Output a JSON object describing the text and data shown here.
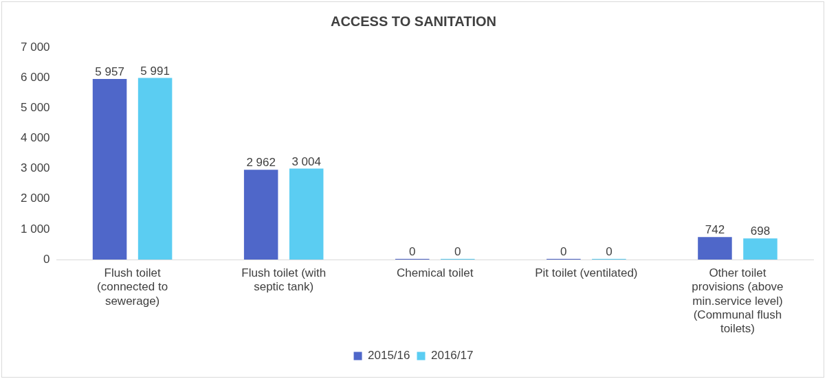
{
  "chart_data": {
    "type": "bar",
    "title": "ACCESS TO SANITATION",
    "categories": [
      "Flush toilet (connected to sewerage)",
      "Flush toilet (with septic tank)",
      "Chemical toilet",
      "Pit toilet (ventilated)",
      "Other toilet provisions (above min.service level) (Communal flush toilets)"
    ],
    "series": [
      {
        "name": "2015/16",
        "color": "#4f67c9",
        "values": [
          5957,
          2962,
          0,
          0,
          742
        ],
        "value_labels": [
          "5 957",
          "2 962",
          "0",
          "0",
          "742"
        ]
      },
      {
        "name": "2016/17",
        "color": "#5bcdf2",
        "values": [
          5991,
          3004,
          0,
          0,
          698
        ],
        "value_labels": [
          "5 991",
          "3 004",
          "0",
          "0",
          "698"
        ]
      }
    ],
    "ylim": [
      0,
      7000
    ],
    "yticks": [
      {
        "value": 0,
        "label": "0"
      },
      {
        "value": 1000,
        "label": "1 000"
      },
      {
        "value": 2000,
        "label": "2 000"
      },
      {
        "value": 3000,
        "label": "3 000"
      },
      {
        "value": 4000,
        "label": "4 000"
      },
      {
        "value": 5000,
        "label": "5 000"
      },
      {
        "value": 6000,
        "label": "6 000"
      },
      {
        "value": 7000,
        "label": "7 000"
      }
    ],
    "grid": false,
    "legend": "bottom"
  }
}
